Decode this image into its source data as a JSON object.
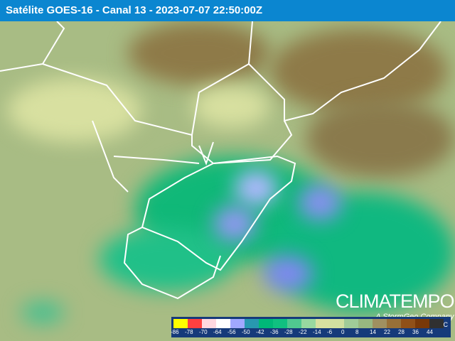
{
  "header": {
    "title": "Satélite GOES-16 - Canal 13 - 2023-07-07 22:50:00Z"
  },
  "logo": {
    "name": "CLIMATEMPO",
    "tagline": "A StormGeo Company"
  },
  "legend": {
    "unit": "C",
    "labels": [
      "-86",
      "-78",
      "-70",
      "-64",
      "-56",
      "-50",
      "-42",
      "-36",
      "-28",
      "-22",
      "-14",
      "-6",
      "0",
      "8",
      "14",
      "22",
      "28",
      "36",
      "44"
    ],
    "colors": [
      "#ffff00",
      "#ff4040",
      "#ffd8e0",
      "#ffffff",
      "#a0a8ff",
      "#2898b0",
      "#00b878",
      "#10c080",
      "#50c890",
      "#98d8a0",
      "#d8e0a0",
      "#d0e0a0",
      "#a0cc98",
      "#98b880",
      "#a09060",
      "#987038",
      "#905018",
      "#783808",
      "#303030"
    ]
  }
}
